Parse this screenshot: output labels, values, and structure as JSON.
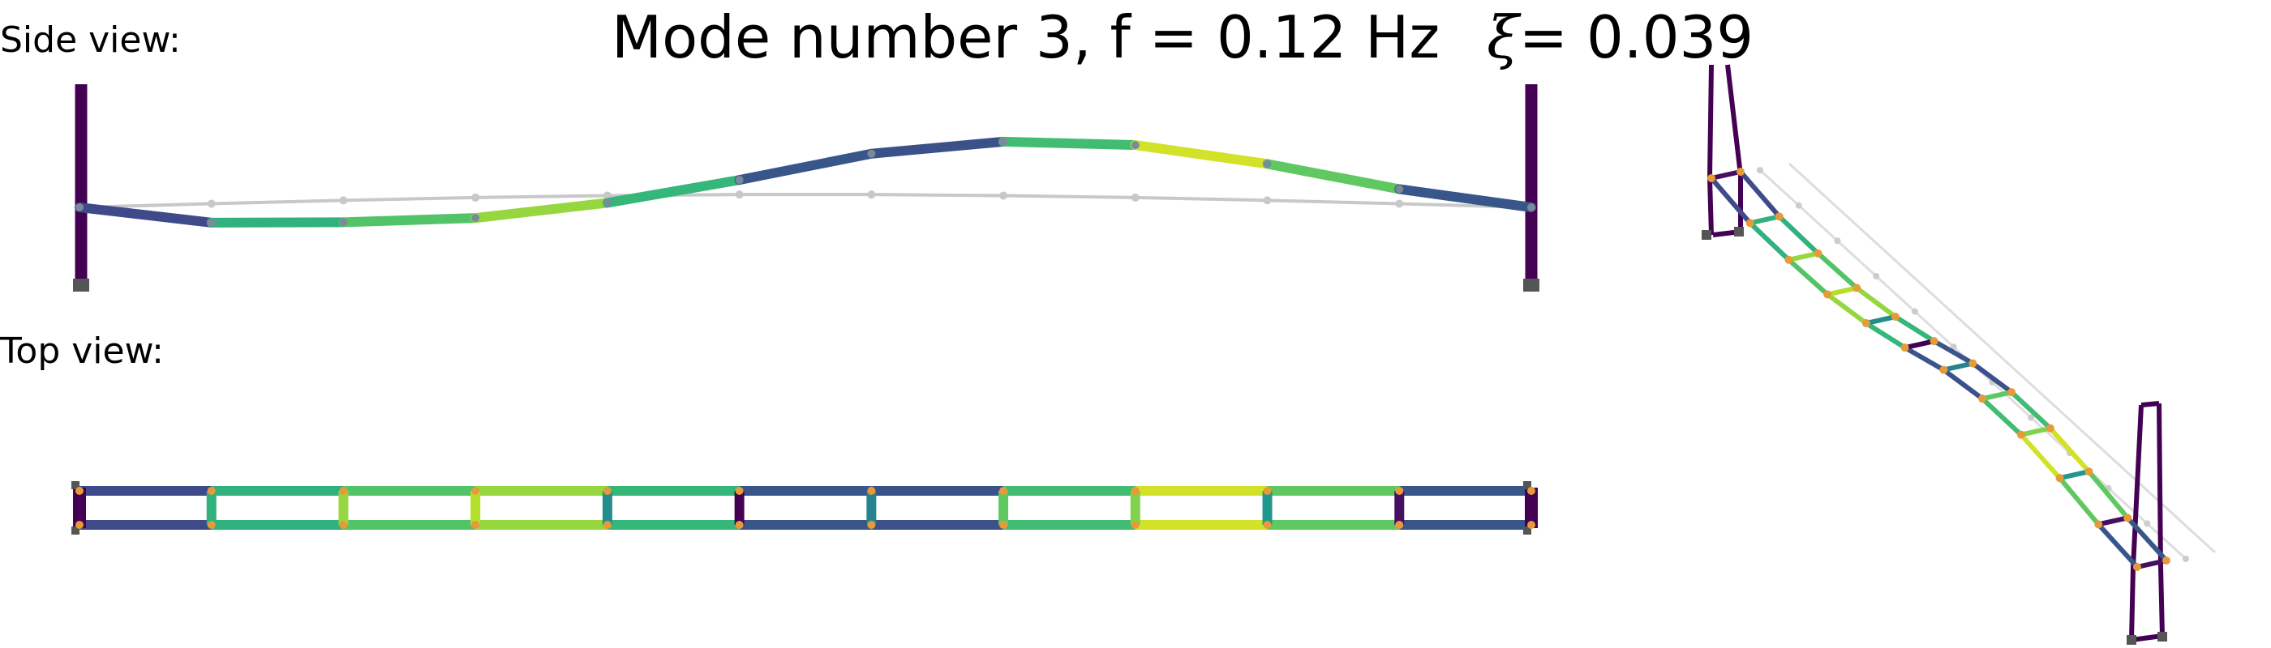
{
  "labels": {
    "side_view": "Side view:",
    "top_view": "Top view:"
  },
  "title": {
    "prefix": "Mode number 3, f = 0.12 Hz",
    "xi_symbol": "ξ",
    "xi_value": "= 0.039"
  },
  "colors": {
    "undeformed": "#c8c8c8",
    "tower": "#440154",
    "support": "#555555",
    "node_orange": "#e69b3a"
  },
  "colormap": "viridis",
  "modeshape": {
    "bays": 11,
    "span_color_levels": [
      0.25,
      0.72,
      0.82,
      0.92,
      0.75,
      0.3,
      0.28,
      0.78,
      0.97,
      0.85,
      0.3
    ],
    "side_vertical_displacement": [
      0.0,
      -0.13,
      -0.15,
      -0.14,
      -0.05,
      0.1,
      0.28,
      0.37,
      0.36,
      0.25,
      0.1,
      0.0
    ],
    "top_rung_color_levels": [
      0.05,
      0.72,
      0.92,
      0.95,
      0.55,
      0.0,
      0.5,
      0.85,
      0.9,
      0.6,
      0.05
    ]
  }
}
